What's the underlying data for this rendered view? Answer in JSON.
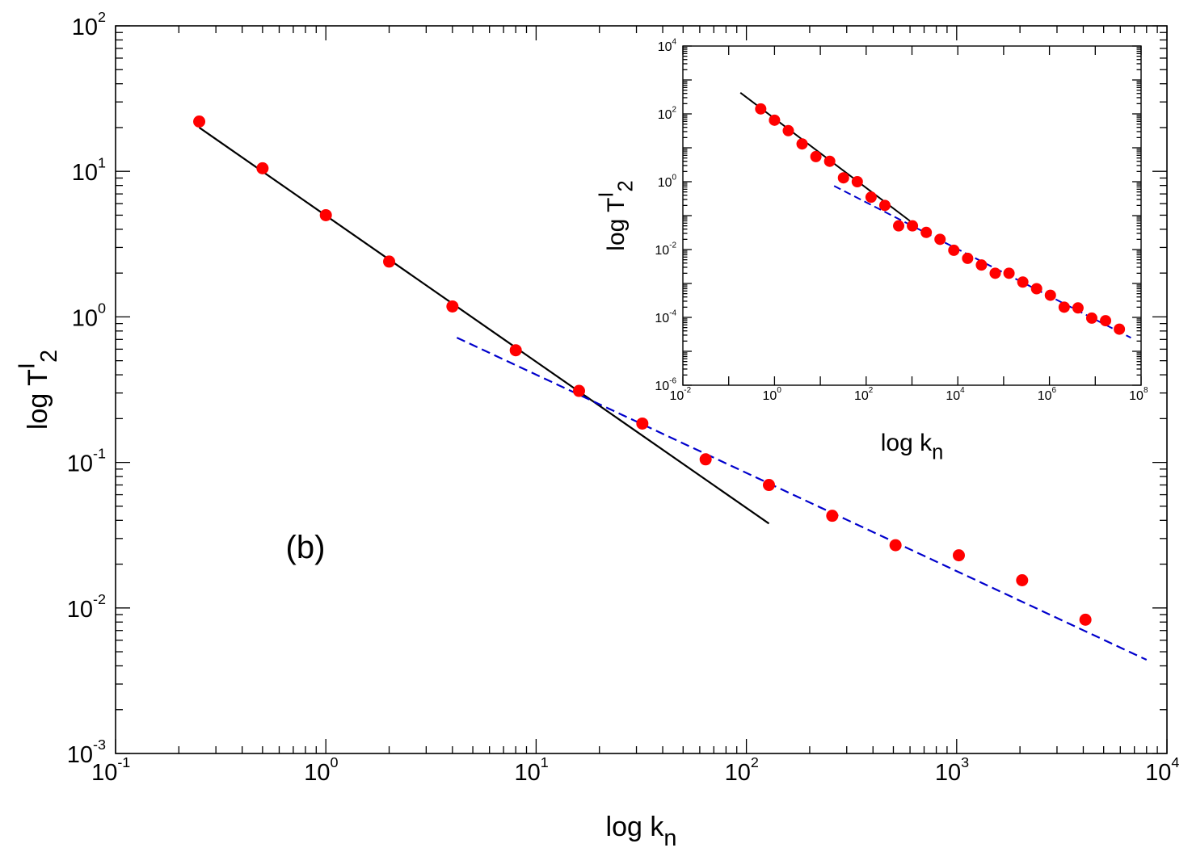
{
  "chart_data": [
    {
      "type": "scatter",
      "xscale": "log",
      "yscale": "log",
      "xlim": [
        0.1,
        10000
      ],
      "ylim": [
        0.001,
        100
      ],
      "xlabel": "log k",
      "xlabel_sub": "n",
      "ylabel": "log T",
      "ylabel_sup": "I",
      "ylabel_sub": "2",
      "annotation": "(b)",
      "xticks": [
        {
          "base": "10",
          "exp": "-1",
          "value": 0.1
        },
        {
          "base": "10",
          "exp": "0",
          "value": 1
        },
        {
          "base": "10",
          "exp": "1",
          "value": 10
        },
        {
          "base": "10",
          "exp": "2",
          "value": 100
        },
        {
          "base": "10",
          "exp": "3",
          "value": 1000
        },
        {
          "base": "10",
          "exp": "4",
          "value": 10000
        }
      ],
      "yticks": [
        {
          "base": "10",
          "exp": "-3",
          "value": 0.001
        },
        {
          "base": "10",
          "exp": "-2",
          "value": 0.01
        },
        {
          "base": "10",
          "exp": "-1",
          "value": 0.1
        },
        {
          "base": "10",
          "exp": "0",
          "value": 1
        },
        {
          "base": "10",
          "exp": "1",
          "value": 10
        },
        {
          "base": "10",
          "exp": "2",
          "value": 100
        }
      ],
      "points": {
        "name": "data",
        "color": "#ff0000",
        "x": [
          0.25,
          0.5,
          1,
          2,
          4,
          8,
          16,
          32,
          64,
          128,
          256,
          512,
          1024,
          2048,
          4096
        ],
        "y": [
          22,
          10.5,
          5,
          2.4,
          1.18,
          0.59,
          0.31,
          0.185,
          0.105,
          0.07,
          0.043,
          0.027,
          0.023,
          0.0155,
          0.0083
        ]
      },
      "fits": [
        {
          "name": "solid-fit",
          "color": "#000000",
          "dash": false,
          "x": [
            0.25,
            128
          ],
          "y": [
            20,
            0.038
          ]
        },
        {
          "name": "dashed-fit",
          "color": "#0000cc",
          "dash": true,
          "x": [
            4.2,
            8000
          ],
          "y": [
            0.72,
            0.0044
          ]
        }
      ]
    },
    {
      "type": "scatter",
      "inset": true,
      "xscale": "log",
      "yscale": "log",
      "xlim": [
        0.01,
        100000000
      ],
      "ylim": [
        1e-06,
        10000
      ],
      "xlabel": "log k",
      "xlabel_sub": "n",
      "ylabel": "log T",
      "ylabel_sup": "I",
      "ylabel_sub": "2",
      "xticks": [
        {
          "base": "10",
          "exp": "-2",
          "value": 0.01
        },
        {
          "base": "10",
          "exp": "0",
          "value": 1
        },
        {
          "base": "10",
          "exp": "2",
          "value": 100
        },
        {
          "base": "10",
          "exp": "4",
          "value": 10000
        },
        {
          "base": "10",
          "exp": "6",
          "value": 1000000
        },
        {
          "base": "10",
          "exp": "8",
          "value": 100000000
        }
      ],
      "yticks": [
        {
          "base": "10",
          "exp": "-6",
          "value": 1e-06
        },
        {
          "base": "10",
          "exp": "-4",
          "value": 0.0001
        },
        {
          "base": "10",
          "exp": "-2",
          "value": 0.01
        },
        {
          "base": "10",
          "exp": "0",
          "value": 1
        },
        {
          "base": "10",
          "exp": "2",
          "value": 100
        },
        {
          "base": "10",
          "exp": "4",
          "value": 10000
        }
      ],
      "points": {
        "name": "data",
        "color": "#ff0000",
        "x": [
          0.5,
          1,
          2,
          4,
          8,
          16,
          32,
          64,
          128,
          256,
          512,
          1024,
          2048,
          4096,
          8192,
          16384,
          32768,
          65536,
          131072,
          262144,
          524288,
          1048576,
          2097152,
          4194304,
          8388608,
          16777216,
          33554432
        ],
        "y": [
          140,
          65,
          32,
          13,
          5.5,
          4,
          1.3,
          1,
          0.35,
          0.2,
          0.05,
          0.05,
          0.032,
          0.02,
          0.0095,
          0.0055,
          0.0035,
          0.002,
          0.002,
          0.0011,
          0.0007,
          0.00045,
          0.0002,
          0.00019,
          9.5e-05,
          8e-05,
          4.5e-05
        ]
      },
      "fits": [
        {
          "name": "solid-fit",
          "color": "#000000",
          "dash": false,
          "x": [
            0.18,
            900
          ],
          "y": [
            420,
            0.07
          ]
        },
        {
          "name": "dashed-fit",
          "color": "#0000cc",
          "dash": true,
          "x": [
            20,
            60000000
          ],
          "y": [
            0.75,
            2.5e-05
          ]
        }
      ]
    }
  ]
}
